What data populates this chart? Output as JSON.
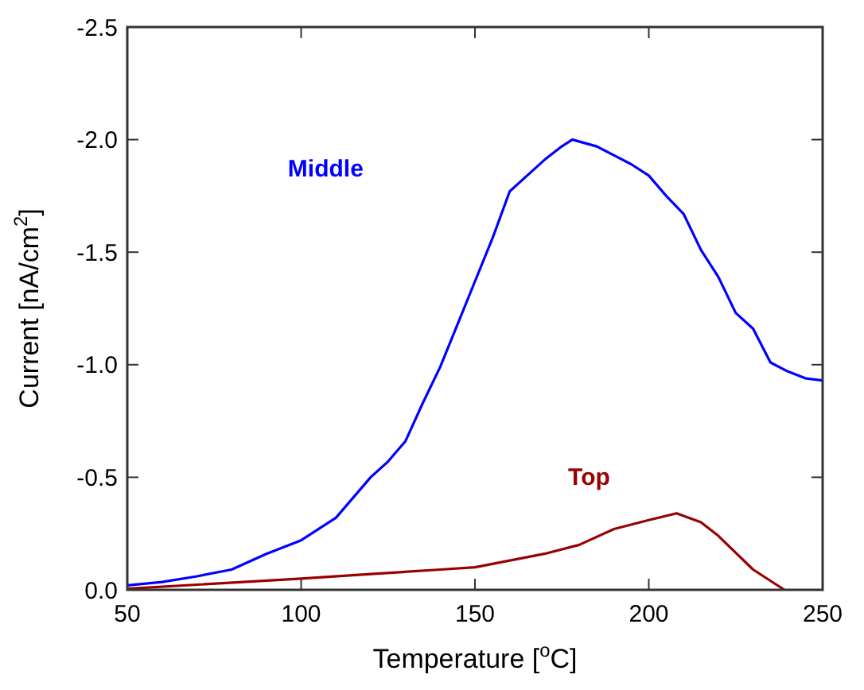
{
  "chart_data": {
    "type": "line",
    "xlabel": "Temperature [$^{o}$C]",
    "ylabel": "Current [nA/cm$^{2}$]",
    "xlim": [
      50,
      250
    ],
    "xticks": [
      50,
      100,
      150,
      200,
      250
    ],
    "ylim": [
      0,
      -2.5
    ],
    "yticks": [
      {
        "value": 0,
        "label": "0.0"
      },
      {
        "value": -0.5,
        "label": "-0.5"
      },
      {
        "value": -1,
        "label": "-1.0"
      },
      {
        "value": -1.5,
        "label": "-1.5"
      },
      {
        "value": -2,
        "label": "-2.0"
      },
      {
        "value": -2.5,
        "label": "-2.5"
      }
    ],
    "grid": false,
    "line_style": "solid",
    "marker": "none",
    "series": [
      {
        "name": "Middle",
        "color": "#0000ff",
        "x": [
          50,
          60,
          70,
          80,
          90,
          100,
          110,
          120,
          125,
          130,
          135,
          140,
          145,
          150,
          155,
          160,
          165,
          170,
          175,
          178,
          185,
          190,
          195,
          200,
          205,
          210,
          215,
          220,
          225,
          230,
          235,
          240,
          245,
          250
        ],
        "values": [
          -0.02,
          -0.035,
          -0.06,
          -0.09,
          -0.16,
          -0.22,
          -0.32,
          -0.5,
          -0.57,
          -0.66,
          -0.83,
          -0.99,
          -1.18,
          -1.37,
          -1.56,
          -1.77,
          -1.84,
          -1.91,
          -1.97,
          -2.0,
          -1.97,
          -1.93,
          -1.89,
          -1.84,
          -1.75,
          -1.67,
          -1.51,
          -1.39,
          -1.23,
          -1.16,
          -1.01,
          -0.97,
          -0.94,
          -0.93
        ]
      },
      {
        "name": "Top",
        "color": "#990000",
        "x": [
          50,
          100,
          120,
          140,
          150,
          170,
          180,
          190,
          200,
          208,
          215,
          220,
          230,
          239
        ],
        "values": [
          -0.005,
          -0.05,
          -0.07,
          -0.09,
          -0.1,
          -0.16,
          -0.2,
          -0.27,
          -0.31,
          -0.34,
          -0.3,
          -0.24,
          -0.09,
          0
        ]
      }
    ]
  }
}
